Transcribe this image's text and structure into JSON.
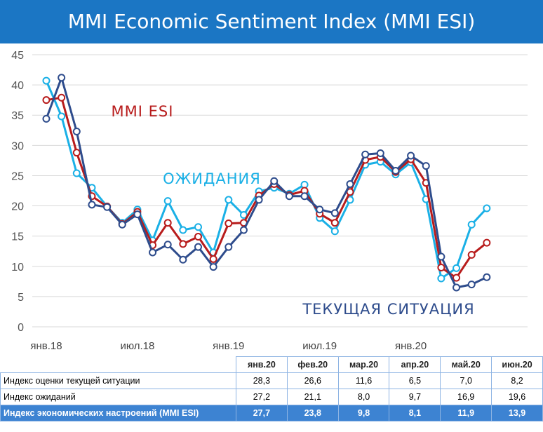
{
  "title": "MMI Economic Sentiment Index (MMI ESI)",
  "chart_data": {
    "type": "line",
    "ylim": [
      0,
      45
    ],
    "yticks": [
      0,
      5,
      10,
      15,
      20,
      25,
      30,
      35,
      40,
      45
    ],
    "x_tick_labels": [
      {
        "index": 0,
        "label": "янв.18"
      },
      {
        "index": 6,
        "label": "июл.18"
      },
      {
        "index": 12,
        "label": "янв.19"
      },
      {
        "index": 18,
        "label": "июл.19"
      },
      {
        "index": 24,
        "label": "янв.20"
      }
    ],
    "n_points": 30,
    "grid": "horizontal",
    "series": [
      {
        "name": "ОЖИДАНИЯ",
        "color": "#1ab0e6",
        "values": [
          40.7,
          34.8,
          25.4,
          23.0,
          19.9,
          17.2,
          19.4,
          14.3,
          20.8,
          16.0,
          16.5,
          12.3,
          21.0,
          18.5,
          22.4,
          23.0,
          22.0,
          23.5,
          18.0,
          15.8,
          21.0,
          26.8,
          27.3,
          25.2,
          27.2,
          21.1,
          8.0,
          9.7,
          16.9,
          19.6
        ]
      },
      {
        "name": "MMI ESI",
        "color": "#b81c1c",
        "values": [
          37.5,
          37.9,
          28.8,
          21.6,
          19.9,
          17.0,
          19.0,
          13.5,
          17.2,
          13.7,
          14.9,
          11.2,
          17.1,
          17.2,
          21.7,
          23.6,
          21.8,
          22.5,
          18.7,
          17.2,
          22.3,
          27.6,
          28.1,
          25.6,
          27.7,
          23.8,
          9.8,
          8.1,
          11.9,
          13.9
        ]
      },
      {
        "name": "ТЕКУЩАЯ СИТУАЦИЯ",
        "color": "#2e4c8c",
        "values": [
          34.4,
          41.2,
          32.3,
          20.2,
          19.8,
          16.9,
          18.6,
          12.3,
          13.6,
          11.1,
          13.2,
          9.9,
          13.2,
          16.0,
          21.0,
          24.1,
          21.6,
          21.6,
          19.4,
          18.8,
          23.6,
          28.5,
          28.7,
          25.8,
          28.3,
          26.6,
          11.6,
          6.5,
          7.0,
          8.2
        ]
      }
    ]
  },
  "table": {
    "headers": [
      "янв.20",
      "фев.20",
      "мар.20",
      "апр.20",
      "май.20",
      "июн.20"
    ],
    "rows": [
      {
        "label": "Индекс оценки текущей ситуации",
        "values": [
          "28,3",
          "26,6",
          "11,6",
          "6,5",
          "7,0",
          "8,2"
        ]
      },
      {
        "label": "Индекс ожиданий",
        "values": [
          "27,2",
          "21,1",
          "8,0",
          "9,7",
          "16,9",
          "19,6"
        ]
      },
      {
        "label": "Индекс экономических настроений (MMI ESI)",
        "values": [
          "27,7",
          "23,8",
          "9,8",
          "8,1",
          "11,9",
          "13,9"
        ]
      }
    ]
  }
}
